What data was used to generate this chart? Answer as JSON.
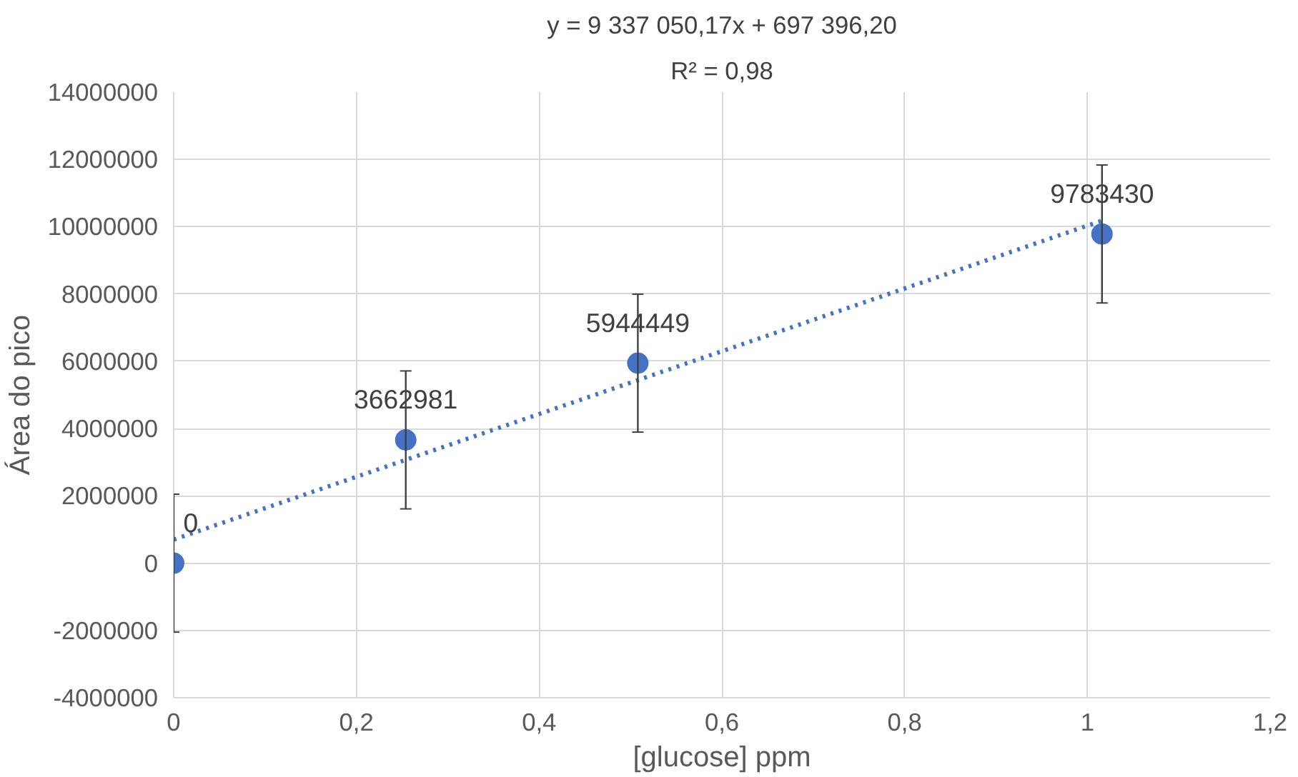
{
  "chart_data": {
    "type": "scatter",
    "annotations": [
      "y = 9 337 050,17x + 697 396,20",
      "R² = 0,98"
    ],
    "xlabel": "[glucose] ppm",
    "ylabel": "Área do pico",
    "series": [
      {
        "color": "#4472c4",
        "x": [
          0,
          0.254,
          0.508,
          1.016
        ],
        "values": [
          0,
          3662981,
          5944449,
          9783430
        ],
        "errors": [
          2050000,
          2050000,
          2050000,
          2050000
        ],
        "data_labels": true,
        "marker": "circle"
      },
      {
        "type": "line",
        "color": "#4472c4",
        "x": [
          0,
          1.016
        ],
        "values": [
          700000,
          10180000
        ],
        "line_style": "dotted",
        "marker": "none"
      }
    ],
    "xlim": [
      0,
      1.2
    ],
    "xticks": [
      0,
      {
        "value": 0.2,
        "label": "0,2"
      },
      {
        "value": 0.4,
        "label": "0,4"
      },
      {
        "value": 0.6,
        "label": "0,6"
      },
      {
        "value": 0.8,
        "label": "0,8"
      },
      1,
      {
        "value": 1.2,
        "label": "1,2"
      }
    ],
    "ylim": [
      -4000000,
      14000000
    ],
    "yticks": [
      -4000000,
      -2000000,
      0,
      2000000,
      4000000,
      6000000,
      8000000,
      10000000,
      12000000,
      14000000
    ],
    "grid": true
  }
}
